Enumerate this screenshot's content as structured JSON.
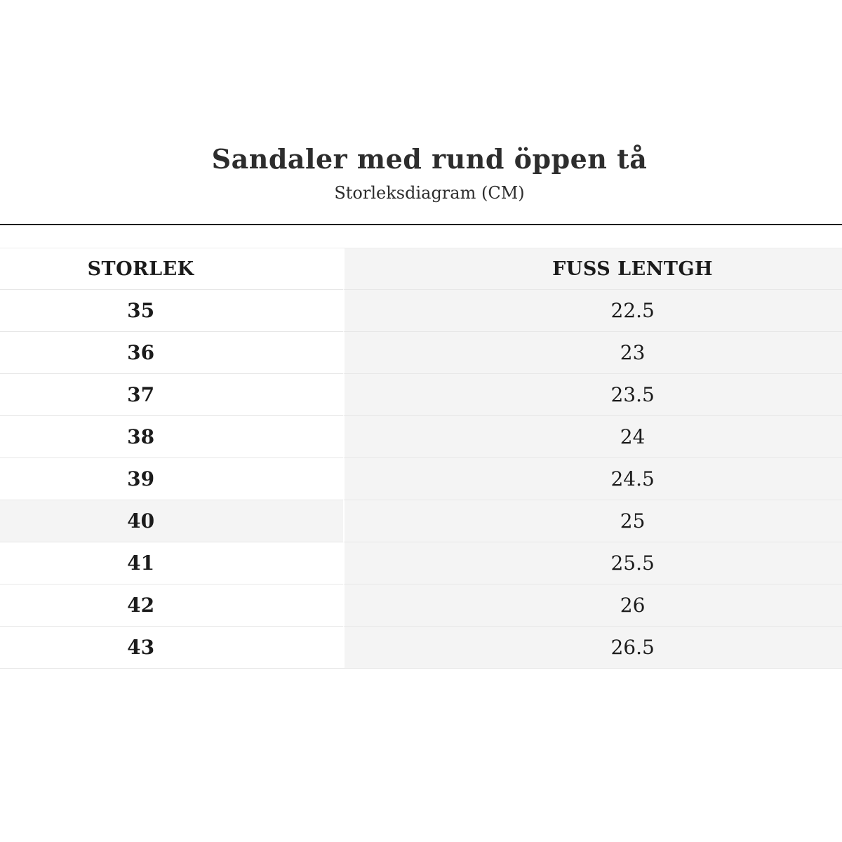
{
  "page": {
    "title": "Sandaler med rund öppen tå",
    "subtitle": "Storleksdiagram (CM)"
  },
  "size_chart": {
    "columns": [
      {
        "key": "storlek",
        "label": "STORLEK"
      },
      {
        "key": "fuss_lentgh",
        "label": "FUSS LENTGH"
      }
    ],
    "rows": [
      {
        "storlek": "35",
        "fuss_lentgh": "22.5",
        "highlighted": false
      },
      {
        "storlek": "36",
        "fuss_lentgh": "23",
        "highlighted": false
      },
      {
        "storlek": "37",
        "fuss_lentgh": "23.5",
        "highlighted": false
      },
      {
        "storlek": "38",
        "fuss_lentgh": "24",
        "highlighted": false
      },
      {
        "storlek": "39",
        "fuss_lentgh": "24.5",
        "highlighted": false
      },
      {
        "storlek": "40",
        "fuss_lentgh": "25",
        "highlighted": true
      },
      {
        "storlek": "41",
        "fuss_lentgh": "25.5",
        "highlighted": false
      },
      {
        "storlek": "42",
        "fuss_lentgh": "26",
        "highlighted": false
      },
      {
        "storlek": "43",
        "fuss_lentgh": "26.5",
        "highlighted": false
      }
    ]
  },
  "colors": {
    "rule": "#1e1e1e",
    "shaded_cell_bg": "#f4f4f4",
    "row_divider": "#e7e7e7",
    "heading_text": "#2d2d2d",
    "table_text": "#1b1b1b"
  }
}
